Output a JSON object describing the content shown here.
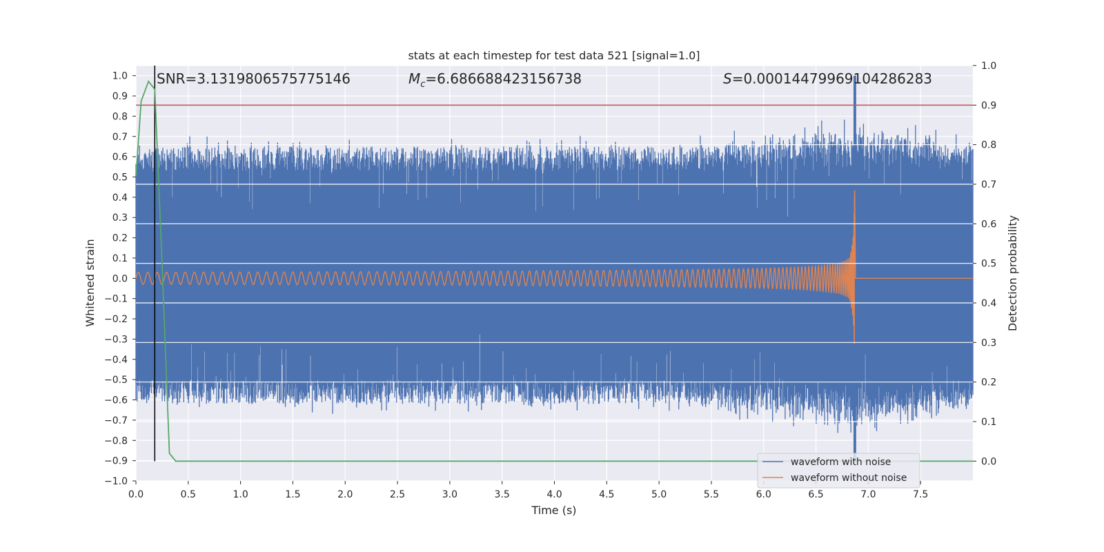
{
  "chart_data": {
    "type": "line",
    "title": "stats at each timestep for test data 521 [signal=1.0]",
    "xlabel": "Time (s)",
    "ylabel_left": "Whitened strain",
    "ylabel_right": "Detection probability",
    "xlim": [
      0.0,
      8.0
    ],
    "ylim_left": [
      -1.0,
      1.05
    ],
    "ylim_right": [
      -0.05,
      1.0
    ],
    "x_ticks": [
      "0.0",
      "0.5",
      "1.0",
      "1.5",
      "2.0",
      "2.5",
      "3.0",
      "3.5",
      "4.0",
      "4.5",
      "5.0",
      "5.5",
      "6.0",
      "6.5",
      "7.0",
      "7.5"
    ],
    "x_tick_values": [
      0.0,
      0.5,
      1.0,
      1.5,
      2.0,
      2.5,
      3.0,
      3.5,
      4.0,
      4.5,
      5.0,
      5.5,
      6.0,
      6.5,
      7.0,
      7.5
    ],
    "y_left_ticks": [
      "1.0",
      "0.9",
      "0.8",
      "0.7",
      "0.6",
      "0.5",
      "0.4",
      "0.3",
      "0.2",
      "0.1",
      "0.0",
      "−0.1",
      "−0.2",
      "−0.3",
      "−0.4",
      "−0.5",
      "−0.6",
      "−0.7",
      "−0.8",
      "−0.9",
      "−1.0"
    ],
    "y_left_tick_values": [
      1.0,
      0.9,
      0.8,
      0.7,
      0.6,
      0.5,
      0.4,
      0.3,
      0.2,
      0.1,
      0.0,
      -0.1,
      -0.2,
      -0.3,
      -0.4,
      -0.5,
      -0.6,
      -0.7,
      -0.8,
      -0.9,
      -1.0
    ],
    "y_right_ticks": [
      "1.0",
      "0.9",
      "0.8",
      "0.7",
      "0.6",
      "0.5",
      "0.4",
      "0.3",
      "0.2",
      "0.1",
      "0.0"
    ],
    "y_right_tick_values": [
      1.0,
      0.9,
      0.8,
      0.7,
      0.6,
      0.5,
      0.4,
      0.3,
      0.2,
      0.1,
      0.0
    ],
    "annotations": {
      "snr": "SNR=3.1319806575775146",
      "mc_symbol": "M",
      "mc_sub": "c",
      "mc_value": "=6.686688423156738",
      "s_symbol": "S",
      "s_value": "=0.0001447996910428628​3"
    },
    "series": [
      {
        "name": "waveform with noise",
        "color": "#4c72b0",
        "axis": "left",
        "noise_band": [
          -0.62,
          0.65
        ],
        "peak_time": 6.87,
        "peak_max": 1.0,
        "peak_min": -0.9,
        "end_time": 8.0
      },
      {
        "name": "waveform without noise",
        "color": "#dd8452",
        "axis": "left",
        "chirp": {
          "start_time": 0.0,
          "merger_time": 6.87,
          "start_amp": 0.03,
          "peak_max": 0.45,
          "peak_min": -0.38,
          "end_time": 8.0
        }
      },
      {
        "name": "detection probability",
        "color": "#55a868",
        "axis": "right",
        "x": [
          0.0,
          0.05,
          0.12,
          0.18,
          0.25,
          0.32,
          0.38,
          0.5,
          1.0,
          8.0
        ],
        "y": [
          0.72,
          0.91,
          0.96,
          0.94,
          0.5,
          0.02,
          0.0,
          0.0,
          0.0,
          0.0
        ]
      }
    ],
    "threshold_line": {
      "value": 0.9,
      "axis": "right",
      "color": "#c44e52"
    },
    "marker_line": {
      "x": 0.18,
      "y_from": 0.0,
      "y_to": 1.0,
      "axis": "right",
      "color": "#000000"
    },
    "legend": {
      "placement": "bottom-right",
      "entries": [
        {
          "label": "waveform with noise",
          "color": "#4c72b0"
        },
        {
          "label": "waveform without noise",
          "color": "#dd8452"
        }
      ]
    },
    "colors": {
      "plot_bg": "#eaeaf2",
      "grid": "#ffffff",
      "text": "#262626"
    }
  }
}
